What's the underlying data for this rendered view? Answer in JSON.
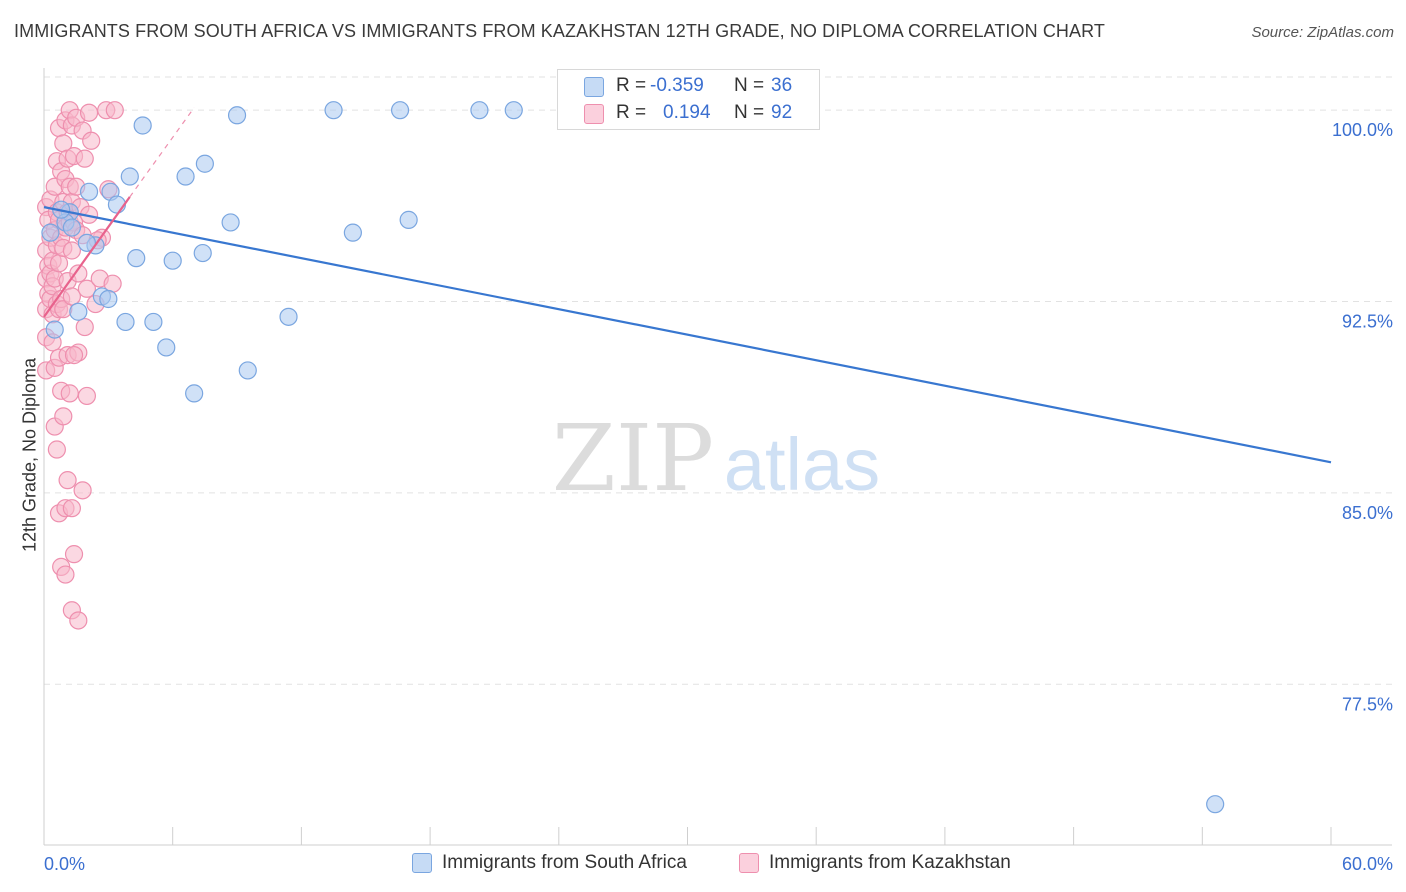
{
  "title": "IMMIGRANTS FROM SOUTH AFRICA VS IMMIGRANTS FROM KAZAKHSTAN 12TH GRADE, NO DIPLOMA CORRELATION CHART",
  "source": "Source: ZipAtlas.com",
  "watermark": {
    "zip": "ZIP",
    "atlas": "atlas"
  },
  "colors": {
    "blue_fill": "#a9c8f0",
    "blue_stroke": "#7aa6e0",
    "blue_line": "#3877d0",
    "pink_fill": "#f7b8cb",
    "pink_stroke": "#ee8fae",
    "pink_line": "#e8628c",
    "axis_label": "#3b6fd0",
    "grid": "#e2e2e2"
  },
  "legend_inset": {
    "rows": [
      {
        "r_label": "R =",
        "r_value": "-0.359",
        "n_label": "N =",
        "n_value": "36",
        "series": "blue"
      },
      {
        "r_label": "R =",
        "r_value": "0.194",
        "n_label": "N =",
        "n_value": "92",
        "series": "pink"
      }
    ]
  },
  "chart_data": {
    "type": "scatter",
    "title": "IMMIGRANTS FROM SOUTH AFRICA VS IMMIGRANTS FROM KAZAKHSTAN 12TH GRADE, NO DIPLOMA CORRELATION CHART",
    "xlabel": "",
    "ylabel": "12th Grade, No Diploma",
    "xlim": [
      0,
      60
    ],
    "ylim": [
      71.2,
      101.3
    ],
    "x_tick_labels": [
      "0.0%",
      "60.0%"
    ],
    "y_ticks": [
      77.5,
      85.0,
      92.5,
      100.0
    ],
    "y_tick_labels": [
      "77.5%",
      "85.0%",
      "92.5%",
      "100.0%"
    ],
    "grid": true,
    "legend": [
      "Immigrants from South Africa",
      "Immigrants from Kazakhstan"
    ],
    "series": [
      {
        "name": "Immigrants from South Africa",
        "color": "blue",
        "points": [
          [
            1.2,
            96.0
          ],
          [
            1.6,
            92.1
          ],
          [
            2.1,
            96.8
          ],
          [
            2.4,
            94.7
          ],
          [
            2.7,
            92.7
          ],
          [
            3.0,
            92.6
          ],
          [
            3.1,
            96.8
          ],
          [
            3.4,
            96.3
          ],
          [
            3.8,
            91.7
          ],
          [
            4.0,
            97.4
          ],
          [
            4.3,
            94.2
          ],
          [
            4.6,
            99.4
          ],
          [
            5.1,
            91.7
          ],
          [
            5.7,
            90.7
          ],
          [
            6.0,
            94.1
          ],
          [
            6.6,
            97.4
          ],
          [
            7.0,
            88.9
          ],
          [
            7.4,
            94.4
          ],
          [
            7.5,
            97.9
          ],
          [
            8.7,
            95.6
          ],
          [
            9.0,
            99.8
          ],
          [
            9.5,
            89.8
          ],
          [
            11.4,
            91.9
          ],
          [
            13.5,
            100.0
          ],
          [
            14.4,
            95.2
          ],
          [
            16.6,
            100.0
          ],
          [
            17.0,
            95.7
          ],
          [
            20.3,
            100.0
          ],
          [
            21.9,
            100.0
          ],
          [
            0.5,
            91.4
          ],
          [
            1.0,
            95.6
          ],
          [
            0.3,
            95.2
          ],
          [
            0.8,
            96.1
          ],
          [
            2.0,
            94.8
          ],
          [
            1.3,
            95.4
          ],
          [
            54.6,
            72.8
          ]
        ],
        "trend": {
          "x": [
            0.0,
            60.0
          ],
          "y": [
            96.2,
            86.2
          ]
        }
      },
      {
        "name": "Immigrants from Kazakhstan",
        "color": "pink",
        "points": [
          [
            0.1,
            96.2
          ],
          [
            0.1,
            94.5
          ],
          [
            0.1,
            93.4
          ],
          [
            0.1,
            92.2
          ],
          [
            0.1,
            91.1
          ],
          [
            0.1,
            89.8
          ],
          [
            0.2,
            95.7
          ],
          [
            0.2,
            93.9
          ],
          [
            0.2,
            92.8
          ],
          [
            0.3,
            96.5
          ],
          [
            0.3,
            95.0
          ],
          [
            0.3,
            93.6
          ],
          [
            0.3,
            92.6
          ],
          [
            0.4,
            94.1
          ],
          [
            0.4,
            93.1
          ],
          [
            0.4,
            92.0
          ],
          [
            0.4,
            90.9
          ],
          [
            0.5,
            97.0
          ],
          [
            0.5,
            95.3
          ],
          [
            0.5,
            93.4
          ],
          [
            0.5,
            89.9
          ],
          [
            0.5,
            87.6
          ],
          [
            0.6,
            98.0
          ],
          [
            0.6,
            96.0
          ],
          [
            0.6,
            94.7
          ],
          [
            0.6,
            92.4
          ],
          [
            0.6,
            86.7
          ],
          [
            0.7,
            99.3
          ],
          [
            0.7,
            95.7
          ],
          [
            0.7,
            94.0
          ],
          [
            0.7,
            92.2
          ],
          [
            0.7,
            90.3
          ],
          [
            0.7,
            84.2
          ],
          [
            0.8,
            97.6
          ],
          [
            0.8,
            95.0
          ],
          [
            0.8,
            92.6
          ],
          [
            0.8,
            89.0
          ],
          [
            0.8,
            82.1
          ],
          [
            0.9,
            98.7
          ],
          [
            0.9,
            96.4
          ],
          [
            0.9,
            94.6
          ],
          [
            0.9,
            92.2
          ],
          [
            1.0,
            99.6
          ],
          [
            1.0,
            97.3
          ],
          [
            1.0,
            95.4
          ],
          [
            1.0,
            84.4
          ],
          [
            1.0,
            81.8
          ],
          [
            1.1,
            98.1
          ],
          [
            1.1,
            96.0
          ],
          [
            1.1,
            93.3
          ],
          [
            1.1,
            90.4
          ],
          [
            1.1,
            85.5
          ],
          [
            1.2,
            100.0
          ],
          [
            1.2,
            97.0
          ],
          [
            1.2,
            95.6
          ],
          [
            1.2,
            88.9
          ],
          [
            1.3,
            99.4
          ],
          [
            1.3,
            96.4
          ],
          [
            1.3,
            94.5
          ],
          [
            1.3,
            92.7
          ],
          [
            1.3,
            84.4
          ],
          [
            1.3,
            80.4
          ],
          [
            1.4,
            98.2
          ],
          [
            1.4,
            95.6
          ],
          [
            1.4,
            82.6
          ],
          [
            1.5,
            99.7
          ],
          [
            1.5,
            97.0
          ],
          [
            1.5,
            95.3
          ],
          [
            1.6,
            93.6
          ],
          [
            1.6,
            90.5
          ],
          [
            1.6,
            80.0
          ],
          [
            1.7,
            96.2
          ],
          [
            1.8,
            99.2
          ],
          [
            1.8,
            95.1
          ],
          [
            1.8,
            85.1
          ],
          [
            1.9,
            98.1
          ],
          [
            1.9,
            91.5
          ],
          [
            2.0,
            93.0
          ],
          [
            2.0,
            88.8
          ],
          [
            2.1,
            99.9
          ],
          [
            2.1,
            95.9
          ],
          [
            2.2,
            98.8
          ],
          [
            2.4,
            92.4
          ],
          [
            2.6,
            93.4
          ],
          [
            2.7,
            95.0
          ],
          [
            2.9,
            100.0
          ],
          [
            3.0,
            96.9
          ],
          [
            3.2,
            93.2
          ],
          [
            3.3,
            100.0
          ],
          [
            2.5,
            94.9
          ],
          [
            1.4,
            90.4
          ],
          [
            0.9,
            88.0
          ]
        ],
        "trend": {
          "x": [
            0.0,
            4.0
          ],
          "y": [
            91.9,
            96.6
          ]
        },
        "trend_extended": {
          "x": [
            4.0,
            7.0
          ],
          "y": [
            96.6,
            100.1
          ]
        }
      }
    ]
  }
}
